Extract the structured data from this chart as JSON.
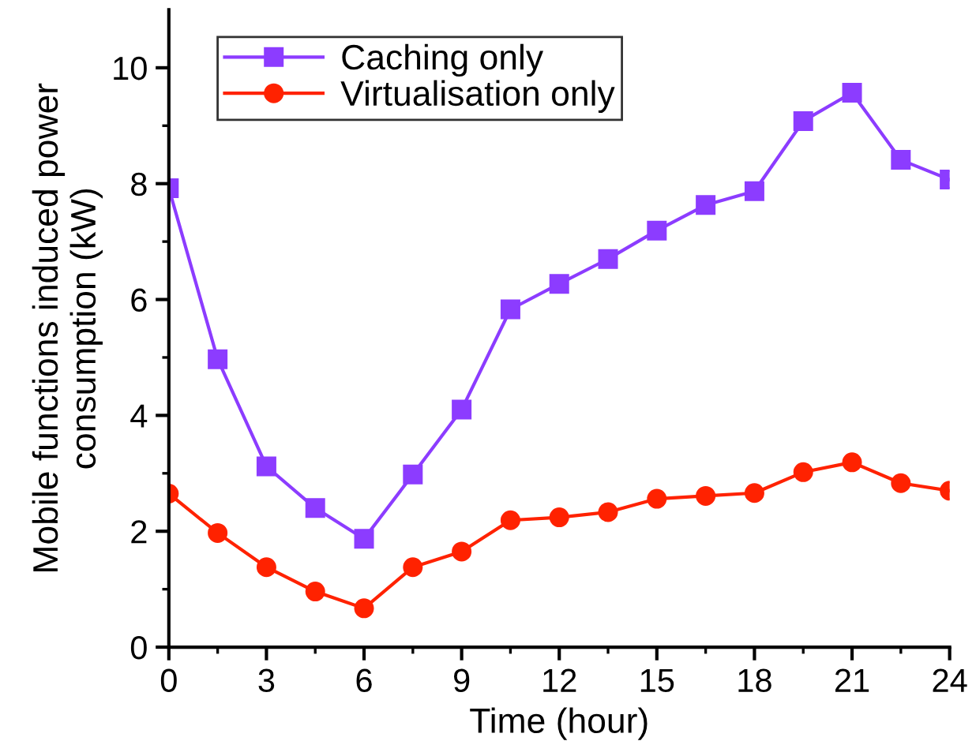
{
  "chart_data": {
    "type": "line",
    "xlabel": "Time (hour)",
    "ylabel": "Mobile functions induced power\nconsumption (kW)",
    "x": [
      0,
      1.5,
      3,
      4.5,
      6,
      7.5,
      9,
      10.5,
      12,
      13.5,
      15,
      16.5,
      18,
      19.5,
      21,
      22.5,
      24
    ],
    "series": [
      {
        "name": "Caching only",
        "color": "#8c3cff",
        "marker": "square",
        "values": [
          7.92,
          4.97,
          3.12,
          2.4,
          1.87,
          2.98,
          4.1,
          5.83,
          6.27,
          6.7,
          7.19,
          7.63,
          7.87,
          9.08,
          9.57,
          8.41,
          8.07
        ]
      },
      {
        "name": "Virtualisation only",
        "color": "#ff2200",
        "marker": "circle",
        "values": [
          2.65,
          1.97,
          1.38,
          0.96,
          0.67,
          1.38,
          1.65,
          2.19,
          2.24,
          2.33,
          2.56,
          2.61,
          2.66,
          3.02,
          3.19,
          2.83,
          2.7
        ]
      }
    ],
    "xlim": [
      0,
      24
    ],
    "ylim": [
      0,
      11
    ],
    "xticks": [
      0,
      {
        "value": 1.5,
        "label": null
      },
      3,
      {
        "value": 4.5,
        "label": null
      },
      6,
      {
        "value": 7.5,
        "label": null
      },
      9,
      {
        "value": 10.5,
        "label": null
      },
      12,
      {
        "value": 13.5,
        "label": null
      },
      15,
      {
        "value": 16.5,
        "label": null
      },
      18,
      {
        "value": 19.5,
        "label": null
      },
      21,
      {
        "value": 22.5,
        "label": null
      },
      24
    ],
    "yticks": [
      0,
      {
        "value": 1,
        "label": null
      },
      2,
      {
        "value": 3,
        "label": null
      },
      4,
      {
        "value": 5,
        "label": null
      },
      6,
      {
        "value": 7,
        "label": null
      },
      8,
      {
        "value": 9,
        "label": null
      },
      10
    ],
    "grid": false,
    "legend": "top left",
    "line_style": "solid"
  }
}
